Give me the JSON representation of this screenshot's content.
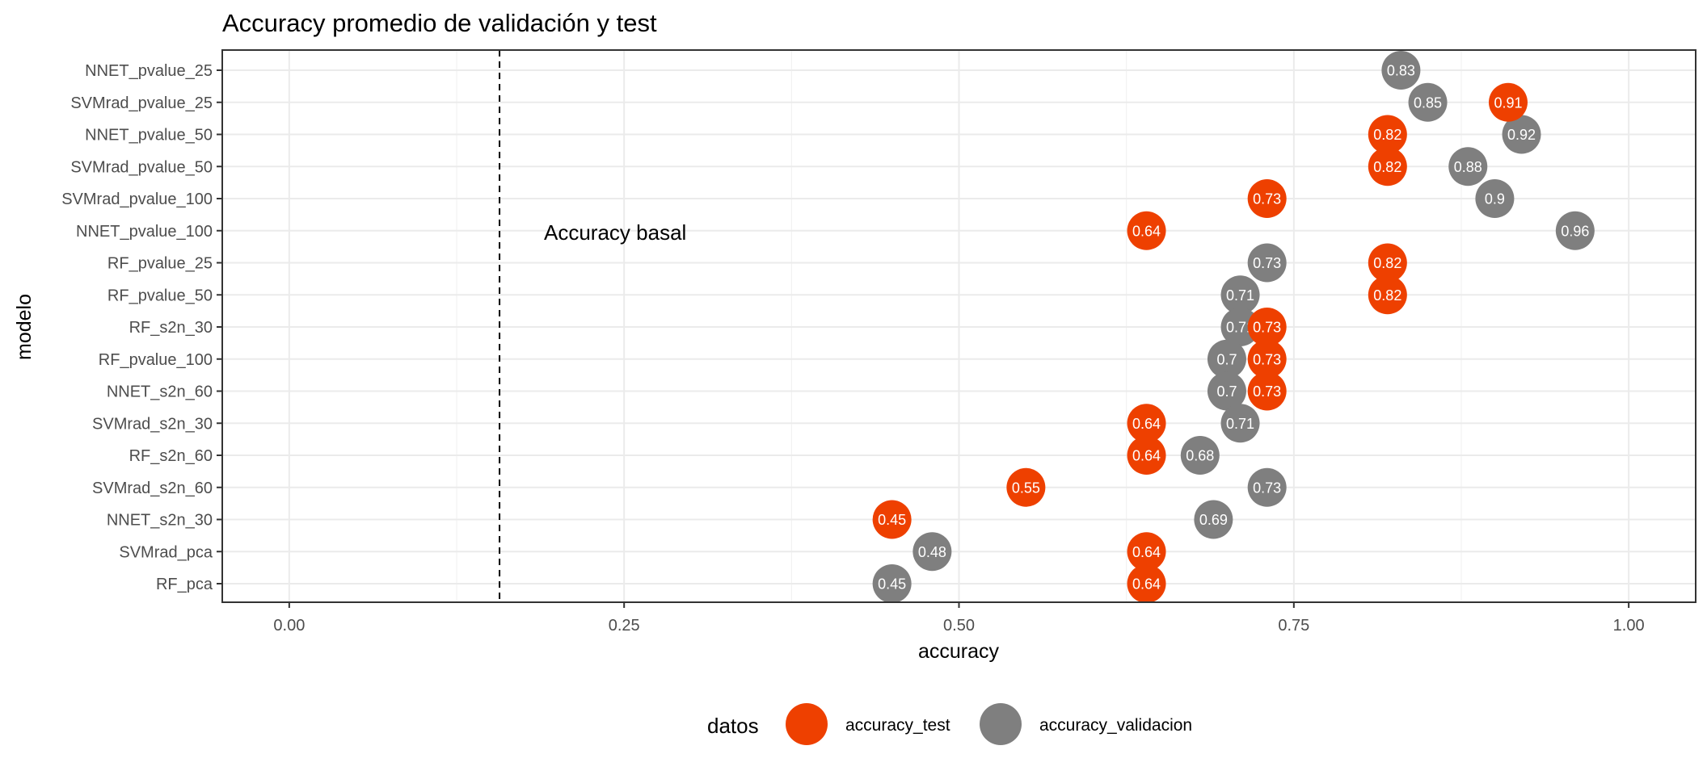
{
  "chart_data": {
    "type": "scatter",
    "title": "Accuracy promedio de validación y test",
    "xlabel": "accuracy",
    "ylabel": "modelo",
    "xlim": [
      -0.05,
      1.05
    ],
    "x_ticks": [
      "0.00",
      "0.25",
      "0.50",
      "0.75",
      "1.00"
    ],
    "x_tick_values": [
      0,
      0.25,
      0.5,
      0.75,
      1.0
    ],
    "grid": true,
    "legend_position": "bottom",
    "legend_title": "datos",
    "reference_line": {
      "x": 0.157,
      "style": "dashed",
      "label": "Accuracy basal"
    },
    "categories": [
      "NNET_pvalue_25",
      "SVMrad_pvalue_25",
      "NNET_pvalue_50",
      "SVMrad_pvalue_50",
      "SVMrad_pvalue_100",
      "NNET_pvalue_100",
      "RF_pvalue_25",
      "RF_pvalue_50",
      "RF_s2n_30",
      "RF_pvalue_100",
      "NNET_s2n_60",
      "SVMrad_s2n_30",
      "RF_s2n_60",
      "SVMrad_s2n_60",
      "NNET_s2n_30",
      "SVMrad_pca",
      "RF_pca"
    ],
    "series": [
      {
        "name": "accuracy_validacion",
        "color": "#7f7f7f",
        "values": [
          0.83,
          0.85,
          0.92,
          0.88,
          0.9,
          0.96,
          0.73,
          0.71,
          0.71,
          0.7,
          0.7,
          0.71,
          0.68,
          0.73,
          0.69,
          0.48,
          0.45
        ],
        "labels": [
          "0.83",
          "0.85",
          "0.92",
          "0.88",
          "0.9",
          "0.96",
          "0.73",
          "0.71",
          "0.71",
          "0.7",
          "0.7",
          "0.71",
          "0.68",
          "0.73",
          "0.69",
          "0.48",
          "0.45"
        ]
      },
      {
        "name": "accuracy_test",
        "color": "#ee4000",
        "values": [
          null,
          0.91,
          0.82,
          0.82,
          0.73,
          0.64,
          0.82,
          0.82,
          0.73,
          0.73,
          0.73,
          0.64,
          0.64,
          0.55,
          0.45,
          0.64,
          0.64
        ],
        "labels": [
          "",
          "0.91",
          "0.82",
          "0.82",
          "0.73",
          "0.64",
          "0.82",
          "0.82",
          "0.73",
          "0.73",
          "0.73",
          "0.64",
          "0.64",
          "0.55",
          "0.45",
          "0.64",
          "0.64"
        ]
      }
    ],
    "legend_order": [
      "accuracy_test",
      "accuracy_validacion"
    ]
  }
}
